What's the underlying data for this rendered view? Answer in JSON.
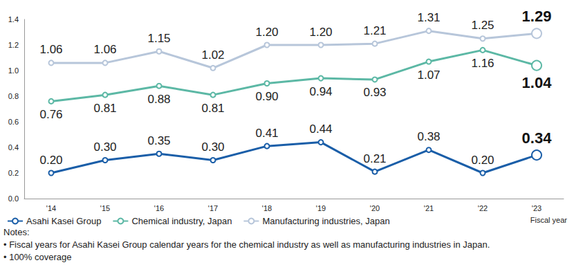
{
  "chart_data": {
    "type": "line",
    "categories": [
      "'14",
      "'15",
      "'16",
      "'17",
      "'18",
      "'19",
      "'20",
      "'21",
      "'22",
      "'23"
    ],
    "series": [
      {
        "name": "Asahi Kasei Group",
        "color": "#1a5ea8",
        "values": [
          0.2,
          0.3,
          0.35,
          0.3,
          0.41,
          0.44,
          0.21,
          0.38,
          0.2,
          0.34
        ],
        "value_labels": [
          "0.20",
          "0.30",
          "0.35",
          "0.30",
          "0.41",
          "0.44",
          "0.21",
          "0.38",
          "0.20",
          "0.34"
        ]
      },
      {
        "name": "Chemical industry, Japan",
        "color": "#5cb8a5",
        "values": [
          0.76,
          0.81,
          0.88,
          0.81,
          0.9,
          0.94,
          0.93,
          1.07,
          1.16,
          1.04
        ],
        "value_labels": [
          "0.76",
          "0.81",
          "0.88",
          "0.81",
          "0.90",
          "0.94",
          "0.93",
          "1.07",
          "1.16",
          "1.04"
        ]
      },
      {
        "name": "Manufacturing industries, Japan",
        "color": "#b7c6da",
        "values": [
          1.06,
          1.06,
          1.15,
          1.02,
          1.2,
          1.2,
          1.21,
          1.31,
          1.25,
          1.29
        ],
        "value_labels": [
          "1.06",
          "1.06",
          "1.15",
          "1.02",
          "1.20",
          "1.20",
          "1.21",
          "1.31",
          "1.25",
          "1.29"
        ]
      }
    ],
    "xlabel": "Fiscal year",
    "ylim": [
      0,
      1.4
    ],
    "yticks": [
      {
        "value": 0,
        "label": "0.0"
      },
      0.2,
      0.4,
      0.6,
      0.8,
      {
        "value": 1,
        "label": "1.0"
      },
      1.2,
      1.4
    ],
    "grid": false,
    "legend": "bottom left",
    "marker": "circle",
    "data_labels": true,
    "annotations": [
      "Notes:",
      "• Fiscal years for Asahi Kasei Group calendar years for the chemical industry as well as manufacturing industries in Japan.",
      "• 100% coverage"
    ]
  }
}
